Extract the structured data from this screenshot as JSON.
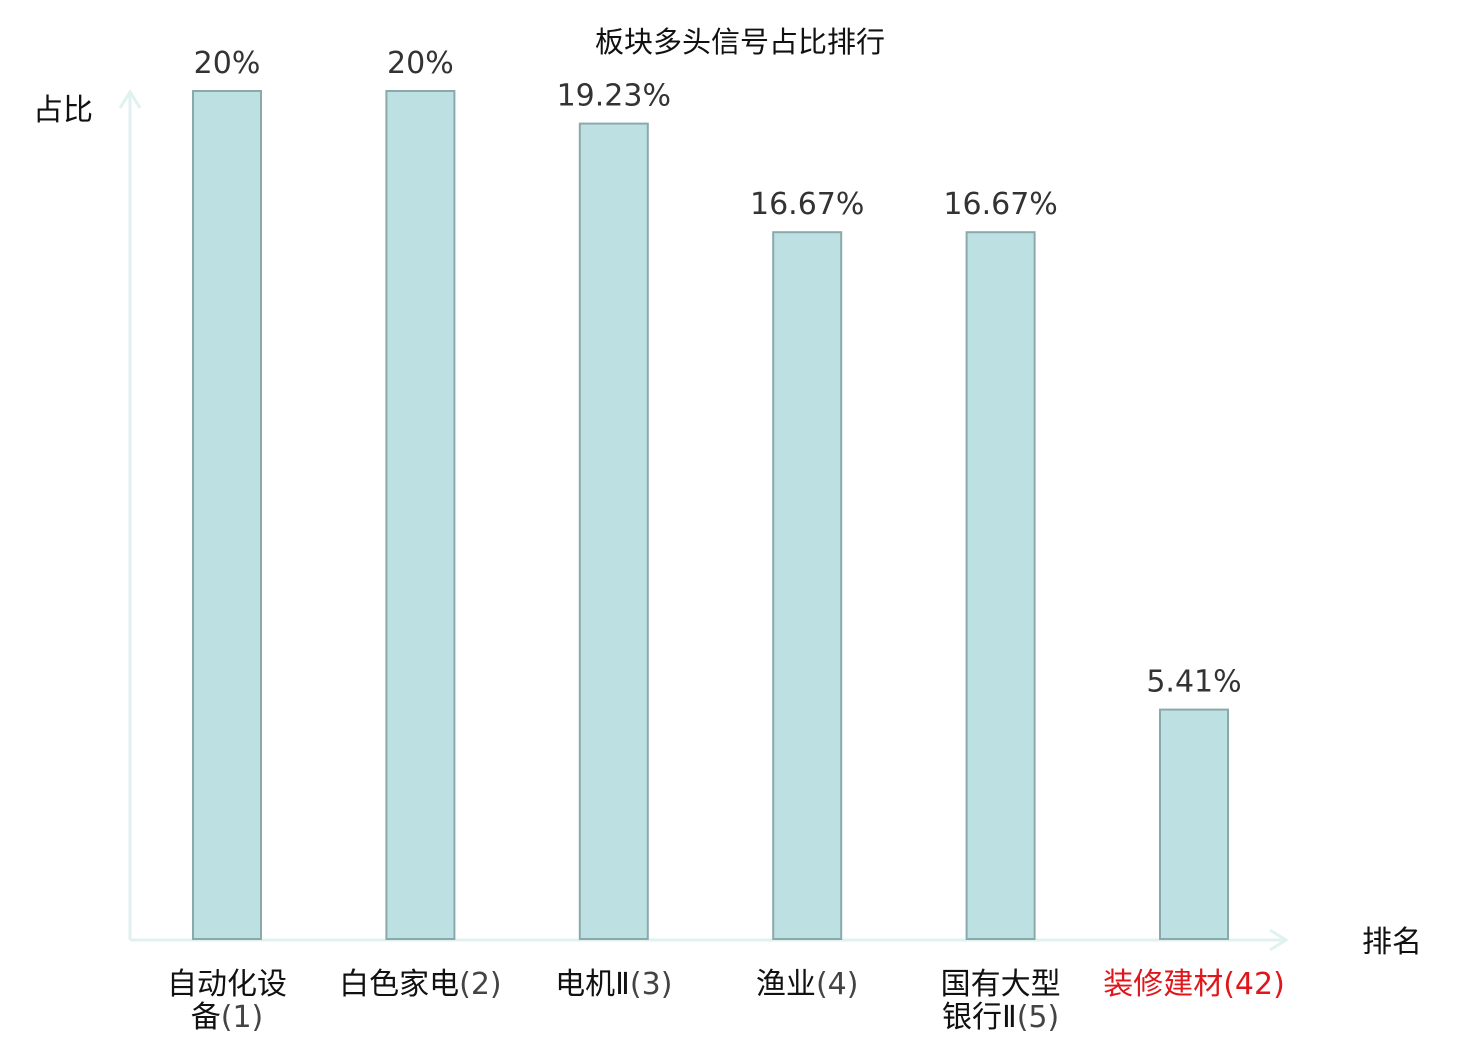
{
  "chart_data": {
    "type": "bar",
    "title": "板块多头信号占比排行",
    "ylabel": "占比",
    "xlabel": "排名",
    "ylim": [
      0,
      20
    ],
    "grid": false,
    "legend": "none",
    "categories": [
      {
        "name_lines": [
          "自动化设",
          "备"
        ],
        "rank": "(1)",
        "highlight": false
      },
      {
        "name_lines": [
          "白色家电"
        ],
        "rank": "(2)",
        "highlight": false
      },
      {
        "name_lines": [
          "电机Ⅱ"
        ],
        "rank": "(3)",
        "highlight": false
      },
      {
        "name_lines": [
          "渔业"
        ],
        "rank": "(4)",
        "highlight": false
      },
      {
        "name_lines": [
          "国有大型",
          "银行Ⅱ"
        ],
        "rank": "(5)",
        "highlight": false
      },
      {
        "name_lines": [
          "装修建材"
        ],
        "rank": "(42)",
        "highlight": true
      }
    ],
    "values": [
      20,
      20,
      19.23,
      16.67,
      16.67,
      5.41
    ],
    "value_labels": [
      "20%",
      "20%",
      "19.23%",
      "16.67%",
      "16.67%",
      "5.41%"
    ]
  },
  "colors": {
    "bar_fill": "#bde1e3",
    "bar_stroke": "#8aa9ab",
    "axis": "#e0f2ef",
    "name_text": "#111111",
    "rank_text": "#444444",
    "highlight_text": "#e0161b",
    "value_text": "#333333"
  }
}
